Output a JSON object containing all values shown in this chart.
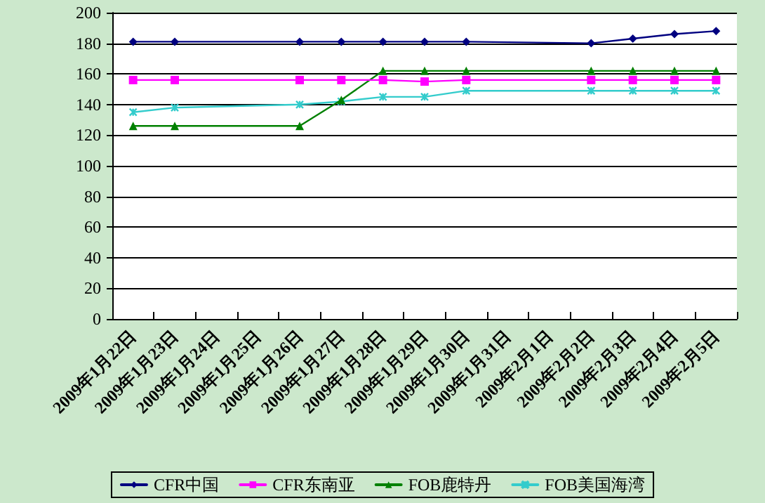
{
  "chart_data": {
    "type": "line",
    "categories": [
      "2009年1月22日",
      "2009年1月23日",
      "2009年1月24日",
      "2009年1月25日",
      "2009年1月26日",
      "2009年1月27日",
      "2009年1月28日",
      "2009年1月29日",
      "2009年1月30日",
      "2009年1月31日",
      "2009年2月1日",
      "2009年2月2日",
      "2009年2月3日",
      "2009年2月4日",
      "2009年2月5日"
    ],
    "series": [
      {
        "name": "CFR中国",
        "color": "#000080",
        "marker": "diamond",
        "values": [
          181,
          181,
          null,
          null,
          181,
          181,
          181,
          181,
          181,
          null,
          null,
          180,
          183,
          186,
          188
        ]
      },
      {
        "name": "CFR东南亚",
        "color": "#ff00ff",
        "marker": "square",
        "values": [
          156,
          156,
          null,
          null,
          156,
          156,
          156,
          155,
          156,
          null,
          null,
          156,
          156,
          156,
          156
        ]
      },
      {
        "name": "FOB鹿特丹",
        "color": "#008000",
        "marker": "triangle",
        "values": [
          126,
          126,
          null,
          null,
          126,
          143,
          162,
          162,
          162,
          null,
          null,
          162,
          162,
          162,
          162
        ]
      },
      {
        "name": "FOB美国海湾",
        "color": "#33cccc",
        "marker": "cross",
        "values": [
          135,
          138,
          null,
          null,
          140,
          142,
          145,
          145,
          149,
          null,
          null,
          149,
          149,
          149,
          149
        ]
      }
    ],
    "ylim": [
      0,
      200
    ],
    "yticks": [
      0,
      20,
      40,
      60,
      80,
      100,
      120,
      140,
      160,
      180,
      200
    ],
    "grid": "y",
    "legend": "bottom",
    "line_style": "solid"
  }
}
